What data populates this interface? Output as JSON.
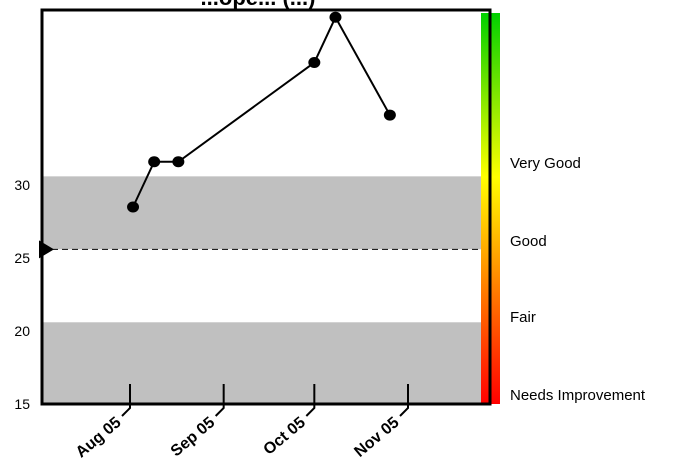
{
  "chart_data": {
    "type": "line",
    "title": "...ope... (...)",
    "xlabel": "",
    "ylabel": "",
    "x_ticks": [
      "Aug 05",
      "Sep 05",
      "Oct 05",
      "Nov 05"
    ],
    "y_ticks": [
      15,
      20,
      25,
      30
    ],
    "ylim": [
      15,
      42
    ],
    "target": 25.6,
    "bands": [
      {
        "from": 15,
        "to": 20.6,
        "color": "#c0c0c0"
      },
      {
        "from": 25.6,
        "to": 30.6,
        "color": "#c0c0c0"
      }
    ],
    "series": [
      {
        "color": "#000000",
        "points": [
          {
            "date": "2005-08-02",
            "value": 28.5
          },
          {
            "date": "2005-08-09",
            "value": 31.6
          },
          {
            "date": "2005-08-17",
            "value": 31.6
          },
          {
            "date": "2005-10-01",
            "value": 38.4
          },
          {
            "date": "2005-10-08",
            "value": 41.5
          },
          {
            "date": "2005-10-26",
            "value": 34.8
          }
        ]
      }
    ],
    "ratings": [
      "Very Good",
      "Good",
      "Fair",
      "Needs Improvement"
    ],
    "rating_scale_colors": [
      "#00d000",
      "#ffff00",
      "#ff8000",
      "#ff0000"
    ],
    "grid": false,
    "legend": "none"
  }
}
